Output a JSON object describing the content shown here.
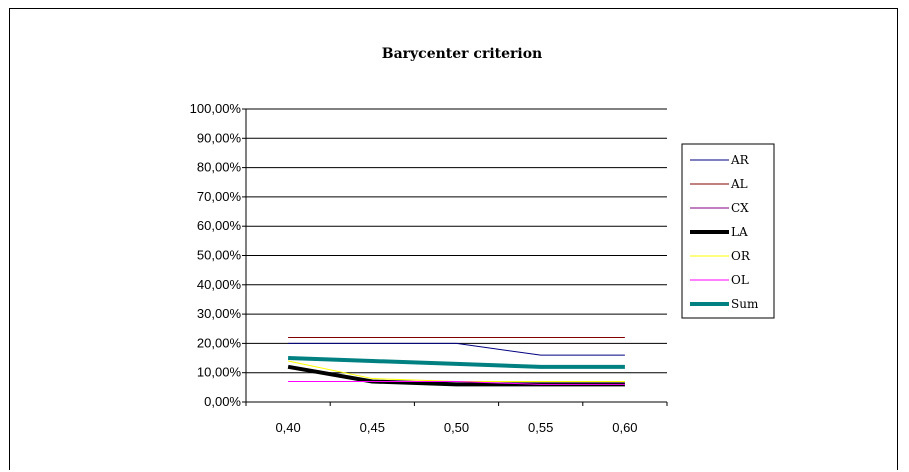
{
  "chart_data": {
    "type": "line",
    "title": "Barycenter criterion",
    "xlabel": "",
    "ylabel": "",
    "x": [
      "0,40",
      "0,45",
      "0,50",
      "0,55",
      "0,60"
    ],
    "yticks": [
      "0,00%",
      "10,00%",
      "20,00%",
      "30,00%",
      "40,00%",
      "50,00%",
      "60,00%",
      "70,00%",
      "80,00%",
      "90,00%",
      "100,00%"
    ],
    "ylim": [
      0,
      100
    ],
    "grid": "horizontal",
    "legend_position": "right",
    "series": [
      {
        "name": "AR",
        "color": "#000080",
        "width": 1,
        "values": [
          20,
          20,
          20,
          16,
          16
        ]
      },
      {
        "name": "AL",
        "color": "#800000",
        "width": 1,
        "values": [
          22,
          22,
          22,
          22,
          22
        ]
      },
      {
        "name": "CX",
        "color": "#800080",
        "width": 1,
        "values": [
          7,
          7,
          6,
          6,
          6
        ]
      },
      {
        "name": "LA",
        "color": "#000000",
        "width": 4,
        "values": [
          12,
          7,
          6,
          6,
          6
        ]
      },
      {
        "name": "OR",
        "color": "#ffff00",
        "width": 1,
        "values": [
          14,
          8,
          7,
          7,
          7
        ]
      },
      {
        "name": "OL",
        "color": "#ff00ff",
        "width": 1,
        "values": [
          7,
          7,
          7,
          6,
          6
        ]
      },
      {
        "name": "Sum",
        "color": "#008080",
        "width": 4,
        "values": [
          15,
          14,
          13,
          12,
          12
        ]
      }
    ]
  }
}
